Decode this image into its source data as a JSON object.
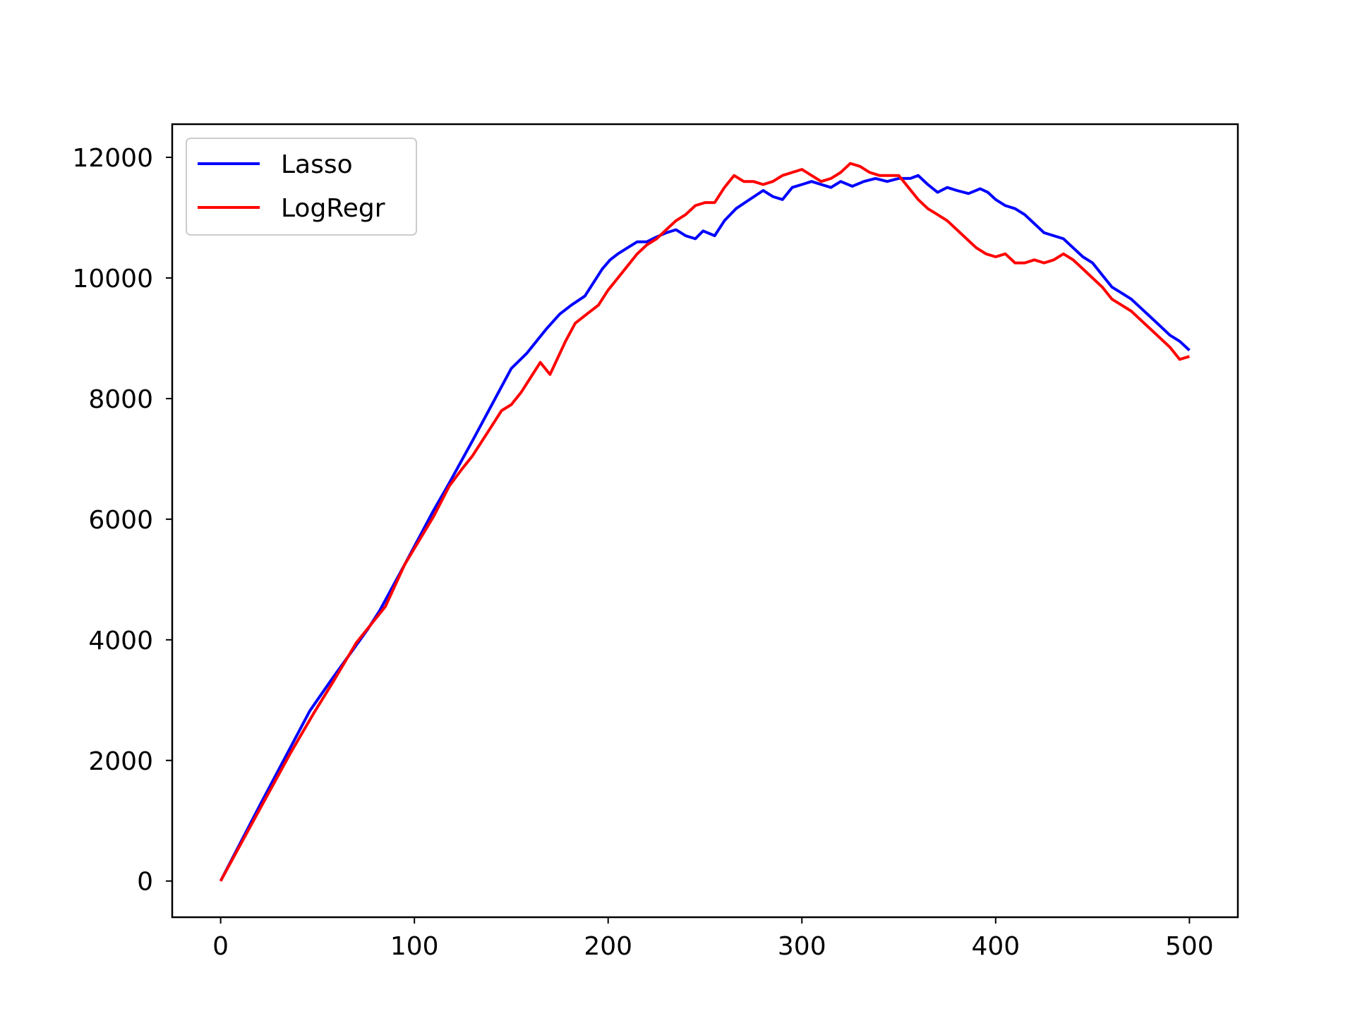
{
  "chart_data": {
    "type": "line",
    "title": "",
    "xlabel": "",
    "ylabel": "",
    "xlim": [
      -25,
      525
    ],
    "ylim": [
      -600,
      12550
    ],
    "xticks": [
      0,
      100,
      200,
      300,
      400,
      500
    ],
    "yticks": [
      0,
      2000,
      4000,
      6000,
      8000,
      10000,
      12000
    ],
    "grid": false,
    "legend_position": "upper-left",
    "series": [
      {
        "name": "Lasso",
        "color": "#0000ff",
        "points": [
          [
            0,
            0
          ],
          [
            20,
            1240
          ],
          [
            46,
            2820
          ],
          [
            57,
            3330
          ],
          [
            68,
            3820
          ],
          [
            76,
            4180
          ],
          [
            82,
            4480
          ],
          [
            95,
            5250
          ],
          [
            110,
            6150
          ],
          [
            118,
            6600
          ],
          [
            130,
            7300
          ],
          [
            140,
            7900
          ],
          [
            150,
            8500
          ],
          [
            158,
            8750
          ],
          [
            163,
            8950
          ],
          [
            168,
            9150
          ],
          [
            175,
            9400
          ],
          [
            181,
            9550
          ],
          [
            188,
            9700
          ],
          [
            193,
            9950
          ],
          [
            197,
            10150
          ],
          [
            201,
            10300
          ],
          [
            205,
            10400
          ],
          [
            210,
            10500
          ],
          [
            215,
            10600
          ],
          [
            220,
            10600
          ],
          [
            225,
            10680
          ],
          [
            230,
            10750
          ],
          [
            235,
            10800
          ],
          [
            240,
            10700
          ],
          [
            245,
            10650
          ],
          [
            249,
            10780
          ],
          [
            255,
            10700
          ],
          [
            260,
            10950
          ],
          [
            266,
            11150
          ],
          [
            272,
            11280
          ],
          [
            280,
            11450
          ],
          [
            285,
            11350
          ],
          [
            290,
            11300
          ],
          [
            295,
            11500
          ],
          [
            300,
            11550
          ],
          [
            305,
            11600
          ],
          [
            310,
            11550
          ],
          [
            315,
            11500
          ],
          [
            320,
            11600
          ],
          [
            326,
            11520
          ],
          [
            332,
            11600
          ],
          [
            338,
            11650
          ],
          [
            344,
            11600
          ],
          [
            350,
            11650
          ],
          [
            356,
            11650
          ],
          [
            360,
            11700
          ],
          [
            365,
            11550
          ],
          [
            370,
            11420
          ],
          [
            375,
            11500
          ],
          [
            380,
            11450
          ],
          [
            386,
            11400
          ],
          [
            392,
            11480
          ],
          [
            396,
            11420
          ],
          [
            400,
            11300
          ],
          [
            405,
            11200
          ],
          [
            410,
            11150
          ],
          [
            415,
            11050
          ],
          [
            420,
            10900
          ],
          [
            425,
            10750
          ],
          [
            430,
            10700
          ],
          [
            435,
            10650
          ],
          [
            440,
            10500
          ],
          [
            445,
            10350
          ],
          [
            450,
            10250
          ],
          [
            455,
            10050
          ],
          [
            460,
            9850
          ],
          [
            465,
            9750
          ],
          [
            470,
            9650
          ],
          [
            475,
            9500
          ],
          [
            480,
            9350
          ],
          [
            485,
            9200
          ],
          [
            490,
            9050
          ],
          [
            495,
            8950
          ],
          [
            500,
            8800
          ]
        ]
      },
      {
        "name": "LogRegr",
        "color": "#ff0000",
        "points": [
          [
            0,
            0
          ],
          [
            20,
            1180
          ],
          [
            36,
            2120
          ],
          [
            48,
            2780
          ],
          [
            58,
            3300
          ],
          [
            70,
            3950
          ],
          [
            85,
            4550
          ],
          [
            95,
            5250
          ],
          [
            110,
            6050
          ],
          [
            118,
            6550
          ],
          [
            125,
            6850
          ],
          [
            130,
            7050
          ],
          [
            135,
            7300
          ],
          [
            140,
            7550
          ],
          [
            145,
            7800
          ],
          [
            150,
            7900
          ],
          [
            155,
            8100
          ],
          [
            160,
            8350
          ],
          [
            165,
            8600
          ],
          [
            170,
            8400
          ],
          [
            178,
            8950
          ],
          [
            183,
            9250
          ],
          [
            189,
            9400
          ],
          [
            195,
            9550
          ],
          [
            200,
            9800
          ],
          [
            205,
            10000
          ],
          [
            210,
            10200
          ],
          [
            215,
            10400
          ],
          [
            220,
            10550
          ],
          [
            225,
            10650
          ],
          [
            230,
            10800
          ],
          [
            235,
            10950
          ],
          [
            240,
            11050
          ],
          [
            245,
            11200
          ],
          [
            250,
            11250
          ],
          [
            255,
            11250
          ],
          [
            260,
            11500
          ],
          [
            265,
            11700
          ],
          [
            270,
            11600
          ],
          [
            275,
            11600
          ],
          [
            280,
            11550
          ],
          [
            285,
            11600
          ],
          [
            290,
            11700
          ],
          [
            295,
            11750
          ],
          [
            300,
            11800
          ],
          [
            305,
            11700
          ],
          [
            310,
            11600
          ],
          [
            315,
            11650
          ],
          [
            320,
            11750
          ],
          [
            325,
            11900
          ],
          [
            330,
            11850
          ],
          [
            335,
            11750
          ],
          [
            340,
            11700
          ],
          [
            345,
            11700
          ],
          [
            350,
            11700
          ],
          [
            355,
            11500
          ],
          [
            360,
            11300
          ],
          [
            365,
            11150
          ],
          [
            370,
            11050
          ],
          [
            375,
            10950
          ],
          [
            380,
            10800
          ],
          [
            385,
            10650
          ],
          [
            390,
            10500
          ],
          [
            395,
            10400
          ],
          [
            400,
            10350
          ],
          [
            405,
            10400
          ],
          [
            410,
            10250
          ],
          [
            415,
            10250
          ],
          [
            420,
            10300
          ],
          [
            425,
            10250
          ],
          [
            430,
            10300
          ],
          [
            435,
            10400
          ],
          [
            440,
            10300
          ],
          [
            445,
            10150
          ],
          [
            450,
            10000
          ],
          [
            455,
            9850
          ],
          [
            460,
            9650
          ],
          [
            465,
            9550
          ],
          [
            470,
            9450
          ],
          [
            475,
            9300
          ],
          [
            480,
            9150
          ],
          [
            485,
            9000
          ],
          [
            490,
            8850
          ],
          [
            495,
            8650
          ],
          [
            500,
            8700
          ]
        ]
      }
    ]
  }
}
